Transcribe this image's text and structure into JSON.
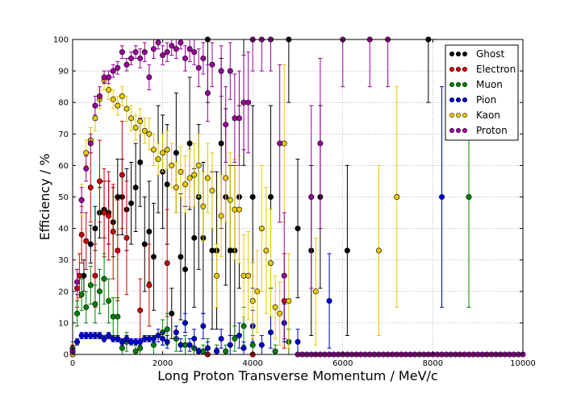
{
  "chart_data": {
    "type": "scatter",
    "title": "",
    "xlabel": "Long Proton Transverse Momentum / MeV/c",
    "ylabel": "Efficiency / %",
    "xlim": [
      0,
      10000
    ],
    "ylim": [
      0,
      100
    ],
    "xticks": [
      0,
      2000,
      4000,
      6000,
      8000,
      10000
    ],
    "yticks": [
      0,
      10,
      20,
      30,
      40,
      50,
      60,
      70,
      80,
      90,
      100
    ],
    "grid": true,
    "legend_position": "top-right",
    "series": [
      {
        "name": "Ghost",
        "color": "#000000",
        "points": [
          [
            0,
            0,
            2
          ],
          [
            250,
            25,
            5
          ],
          [
            400,
            35,
            6
          ],
          [
            500,
            40,
            7
          ],
          [
            600,
            45,
            8
          ],
          [
            700,
            46,
            9
          ],
          [
            800,
            45,
            10
          ],
          [
            900,
            42,
            11
          ],
          [
            1000,
            50,
            12
          ],
          [
            1100,
            50,
            12
          ],
          [
            1200,
            46,
            13
          ],
          [
            1300,
            48,
            13
          ],
          [
            1400,
            53,
            14
          ],
          [
            1500,
            61,
            14
          ],
          [
            1600,
            35,
            15
          ],
          [
            1700,
            39,
            16
          ],
          [
            1800,
            31,
            17
          ],
          [
            1900,
            62,
            17
          ],
          [
            2000,
            58,
            18
          ],
          [
            2100,
            54,
            19
          ],
          [
            2200,
            13,
            8
          ],
          [
            2300,
            64,
            19
          ],
          [
            2400,
            31,
            20
          ],
          [
            2500,
            27,
            20
          ],
          [
            2600,
            67,
            21
          ],
          [
            2700,
            37,
            22
          ],
          [
            2800,
            50,
            23
          ],
          [
            2900,
            37,
            24
          ],
          [
            3000,
            100,
            20
          ],
          [
            3100,
            33,
            25
          ],
          [
            3200,
            33,
            25
          ],
          [
            3300,
            67,
            27
          ],
          [
            3400,
            50,
            28
          ],
          [
            3500,
            33,
            27
          ],
          [
            3600,
            33,
            27
          ],
          [
            3700,
            50,
            29
          ],
          [
            3800,
            80,
            20
          ],
          [
            4000,
            50,
            29
          ],
          [
            4400,
            50,
            29
          ],
          [
            4800,
            100,
            20
          ],
          [
            5000,
            40,
            22
          ],
          [
            5300,
            33,
            27
          ],
          [
            5500,
            50,
            29
          ],
          [
            6100,
            33,
            27
          ],
          [
            7900,
            100,
            20
          ]
        ]
      },
      {
        "name": "Electron",
        "color": "#d00000",
        "points": [
          [
            0,
            1,
            2
          ],
          [
            100,
            21,
            6
          ],
          [
            150,
            25,
            7
          ],
          [
            200,
            38,
            9
          ],
          [
            300,
            36,
            9
          ],
          [
            400,
            53,
            11
          ],
          [
            500,
            25,
            10
          ],
          [
            600,
            55,
            13
          ],
          [
            700,
            45,
            14
          ],
          [
            800,
            44,
            14
          ],
          [
            900,
            39,
            15
          ],
          [
            1000,
            33,
            16
          ],
          [
            1100,
            57,
            17
          ],
          [
            1200,
            37,
            18
          ],
          [
            1500,
            14,
            10
          ],
          [
            1700,
            22,
            13
          ],
          [
            2100,
            29,
            17
          ],
          [
            3000,
            0,
            0
          ],
          [
            4000,
            0,
            0
          ],
          [
            4700,
            17,
            15
          ]
        ]
      },
      {
        "name": "Muon",
        "color": "#008000",
        "points": [
          [
            0,
            2,
            2
          ],
          [
            100,
            13,
            4
          ],
          [
            200,
            19,
            5
          ],
          [
            300,
            15,
            5
          ],
          [
            400,
            22,
            6
          ],
          [
            500,
            16,
            6
          ],
          [
            600,
            20,
            7
          ],
          [
            700,
            24,
            8
          ],
          [
            800,
            17,
            7
          ],
          [
            900,
            12,
            6
          ],
          [
            1000,
            12,
            6
          ],
          [
            1100,
            2,
            3
          ],
          [
            1200,
            4,
            3
          ],
          [
            1400,
            1,
            2
          ],
          [
            1500,
            2,
            2
          ],
          [
            1800,
            3,
            3
          ],
          [
            2000,
            7,
            4
          ],
          [
            2100,
            8,
            5
          ],
          [
            2300,
            5,
            4
          ],
          [
            2500,
            3,
            3
          ],
          [
            2700,
            2,
            3
          ],
          [
            2900,
            1,
            2
          ],
          [
            3000,
            2,
            3
          ],
          [
            3200,
            1,
            2
          ],
          [
            3400,
            1,
            2
          ],
          [
            3600,
            5,
            4
          ],
          [
            3800,
            9,
            6
          ],
          [
            4000,
            3,
            3
          ],
          [
            4500,
            1,
            2
          ],
          [
            4800,
            4,
            4
          ],
          [
            8800,
            50,
            35
          ]
        ]
      },
      {
        "name": "Pion",
        "color": "#0000d0",
        "points": [
          [
            0,
            1,
            1
          ],
          [
            100,
            4,
            1
          ],
          [
            200,
            6,
            1
          ],
          [
            300,
            6,
            1
          ],
          [
            400,
            6,
            1
          ],
          [
            500,
            6,
            1
          ],
          [
            600,
            6,
            1
          ],
          [
            700,
            5,
            1
          ],
          [
            800,
            6,
            1
          ],
          [
            900,
            5,
            1
          ],
          [
            1000,
            5,
            1
          ],
          [
            1100,
            4,
            1
          ],
          [
            1200,
            5,
            1
          ],
          [
            1300,
            4,
            1
          ],
          [
            1400,
            4,
            1
          ],
          [
            1500,
            4,
            1
          ],
          [
            1600,
            5,
            1
          ],
          [
            1700,
            5,
            1
          ],
          [
            1800,
            5,
            1
          ],
          [
            1900,
            6,
            2
          ],
          [
            2000,
            5,
            2
          ],
          [
            2100,
            4,
            2
          ],
          [
            2300,
            7,
            2
          ],
          [
            2400,
            3,
            2
          ],
          [
            2500,
            10,
            3
          ],
          [
            2600,
            3,
            2
          ],
          [
            2700,
            5,
            3
          ],
          [
            2800,
            1,
            1
          ],
          [
            2900,
            9,
            4
          ],
          [
            3000,
            2,
            2
          ],
          [
            3200,
            1,
            1
          ],
          [
            3300,
            5,
            3
          ],
          [
            3500,
            3,
            3
          ],
          [
            3700,
            6,
            4
          ],
          [
            3800,
            2,
            2
          ],
          [
            4000,
            9,
            5
          ],
          [
            4200,
            3,
            3
          ],
          [
            4400,
            7,
            5
          ],
          [
            4700,
            10,
            6
          ],
          [
            5000,
            4,
            4
          ],
          [
            5700,
            17,
            15
          ],
          [
            8200,
            50,
            35
          ]
        ]
      },
      {
        "name": "Kaon",
        "color": "#e8c800",
        "points": [
          [
            0,
            0,
            1
          ],
          [
            200,
            49,
            5
          ],
          [
            300,
            64,
            4
          ],
          [
            400,
            68,
            4
          ],
          [
            500,
            75,
            4
          ],
          [
            600,
            81,
            3
          ],
          [
            700,
            87,
            3
          ],
          [
            800,
            84,
            3
          ],
          [
            900,
            81,
            3
          ],
          [
            1000,
            79,
            3
          ],
          [
            1100,
            82,
            3
          ],
          [
            1200,
            78,
            4
          ],
          [
            1300,
            75,
            4
          ],
          [
            1400,
            72,
            4
          ],
          [
            1500,
            74,
            4
          ],
          [
            1600,
            71,
            4
          ],
          [
            1700,
            70,
            5
          ],
          [
            1800,
            65,
            5
          ],
          [
            1900,
            62,
            5
          ],
          [
            2000,
            64,
            6
          ],
          [
            2100,
            65,
            6
          ],
          [
            2200,
            60,
            7
          ],
          [
            2300,
            53,
            8
          ],
          [
            2400,
            58,
            8
          ],
          [
            2500,
            54,
            9
          ],
          [
            2600,
            56,
            9
          ],
          [
            2700,
            57,
            10
          ],
          [
            2800,
            60,
            10
          ],
          [
            2900,
            47,
            11
          ],
          [
            3000,
            56,
            11
          ],
          [
            3100,
            52,
            12
          ],
          [
            3200,
            25,
            10
          ],
          [
            3300,
            44,
            13
          ],
          [
            3400,
            56,
            14
          ],
          [
            3500,
            49,
            15
          ],
          [
            3600,
            46,
            16
          ],
          [
            3700,
            46,
            17
          ],
          [
            3800,
            25,
            13
          ],
          [
            3900,
            25,
            14
          ],
          [
            4000,
            17,
            12
          ],
          [
            4100,
            20,
            13
          ],
          [
            4200,
            40,
            20
          ],
          [
            4300,
            33,
            20
          ],
          [
            4400,
            29,
            17
          ],
          [
            4500,
            15,
            10
          ],
          [
            4600,
            13,
            10
          ],
          [
            4700,
            67,
            25
          ],
          [
            4800,
            17,
            15
          ],
          [
            5400,
            20,
            17
          ],
          [
            6800,
            33,
            27
          ],
          [
            7200,
            50,
            35
          ]
        ]
      },
      {
        "name": "Proton",
        "color": "#9b009b",
        "points": [
          [
            0,
            1,
            1
          ],
          [
            100,
            23,
            4
          ],
          [
            200,
            49,
            4
          ],
          [
            300,
            59,
            4
          ],
          [
            400,
            67,
            3
          ],
          [
            500,
            79,
            3
          ],
          [
            600,
            82,
            3
          ],
          [
            700,
            88,
            2
          ],
          [
            800,
            88,
            2
          ],
          [
            900,
            90,
            2
          ],
          [
            1000,
            91,
            2
          ],
          [
            1100,
            96,
            2
          ],
          [
            1200,
            92,
            2
          ],
          [
            1300,
            94,
            2
          ],
          [
            1400,
            96,
            2
          ],
          [
            1500,
            94,
            3
          ],
          [
            1600,
            96,
            3
          ],
          [
            1700,
            88,
            4
          ],
          [
            1800,
            97,
            3
          ],
          [
            1900,
            99,
            2
          ],
          [
            2000,
            95,
            3
          ],
          [
            2100,
            96,
            3
          ],
          [
            2200,
            98,
            3
          ],
          [
            2300,
            97,
            3
          ],
          [
            2400,
            99,
            2
          ],
          [
            2500,
            94,
            4
          ],
          [
            2600,
            97,
            4
          ],
          [
            2700,
            96,
            4
          ],
          [
            2800,
            91,
            6
          ],
          [
            2900,
            94,
            5
          ],
          [
            3000,
            83,
            9
          ],
          [
            3100,
            92,
            7
          ],
          [
            3300,
            90,
            8
          ],
          [
            3400,
            73,
            12
          ],
          [
            3500,
            90,
            9
          ],
          [
            3600,
            75,
            14
          ],
          [
            3700,
            75,
            15
          ],
          [
            3800,
            80,
            15
          ],
          [
            3900,
            80,
            16
          ],
          [
            4000,
            100,
            10
          ],
          [
            4200,
            100,
            10
          ],
          [
            4400,
            100,
            10
          ],
          [
            4600,
            67,
            25
          ],
          [
            4700,
            25,
            20
          ],
          [
            5300,
            50,
            29
          ],
          [
            5500,
            67,
            27
          ],
          [
            6000,
            100,
            15
          ],
          [
            6600,
            100,
            15
          ],
          [
            7000,
            100,
            15
          ]
        ],
        "zero_points_from": 5000,
        "zero_points_to": 10000
      }
    ]
  }
}
